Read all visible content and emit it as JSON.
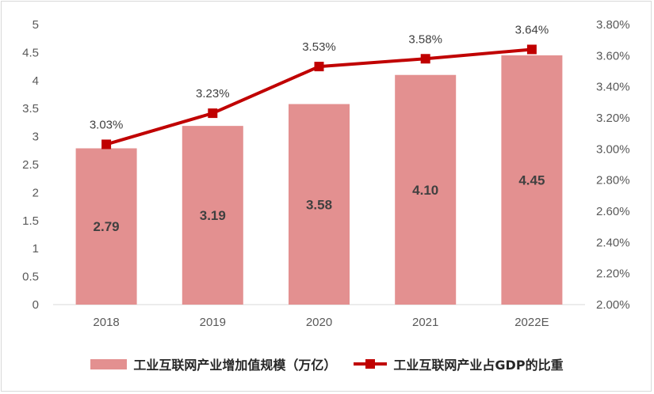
{
  "chart_data": {
    "type": "bar+line",
    "categories": [
      "2018",
      "2019",
      "2020",
      "2021",
      "2022E"
    ],
    "series": [
      {
        "name": "工业互联网产业增加值规模（万亿）",
        "type": "bar",
        "axis": "left",
        "values": [
          2.79,
          3.19,
          3.58,
          4.1,
          4.45
        ],
        "labels": [
          "2.79",
          "3.19",
          "3.58",
          "4.10",
          "4.45"
        ],
        "color": "#e39090"
      },
      {
        "name": "工业互联网产业占GDP的比重",
        "type": "line",
        "axis": "right",
        "values": [
          3.03,
          3.23,
          3.53,
          3.58,
          3.64
        ],
        "labels": [
          "3.03%",
          "3.23%",
          "3.53%",
          "3.58%",
          "3.64%"
        ],
        "color": "#c00000"
      }
    ],
    "left_axis": {
      "ylim": [
        0,
        5
      ],
      "ticks": [
        "0",
        "0.5",
        "1",
        "1.5",
        "2",
        "2.5",
        "3",
        "3.5",
        "4",
        "4.5",
        "5"
      ]
    },
    "right_axis": {
      "ylim": [
        2.0,
        3.8
      ],
      "ticks": [
        "2.00%",
        "2.20%",
        "2.40%",
        "2.60%",
        "2.80%",
        "3.00%",
        "3.20%",
        "3.40%",
        "3.60%",
        "3.80%"
      ]
    },
    "grid": false,
    "legend_position": "bottom"
  }
}
